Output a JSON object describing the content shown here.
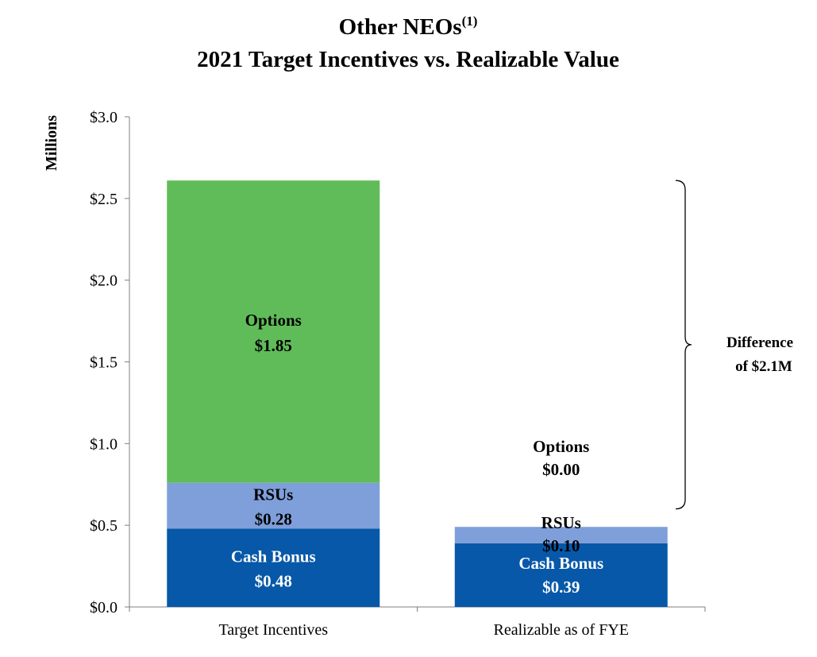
{
  "chart_data": {
    "type": "bar",
    "stacked": true,
    "title_main": "Other NEOs",
    "title_sup": "(1)",
    "subtitle": "2021 Target Incentives vs. Realizable Value",
    "ylabel": "Millions",
    "ylim": [
      0,
      3.0
    ],
    "yticks": [
      "$0.0",
      "$0.5",
      "$1.0",
      "$1.5",
      "$2.0",
      "$2.5",
      "$3.0"
    ],
    "ytick_values": [
      0,
      0.5,
      1.0,
      1.5,
      2.0,
      2.5,
      3.0
    ],
    "categories": [
      "Target Incentives",
      "Realizable as of FYE"
    ],
    "series": [
      {
        "name": "Cash Bonus",
        "color": "#0758a8",
        "label_color": "#ffffff",
        "values": [
          0.48,
          0.39
        ],
        "labels": [
          "$0.48",
          "$0.39"
        ]
      },
      {
        "name": "RSUs",
        "color": "#7f9fdb",
        "label_color": "#000000",
        "values": [
          0.28,
          0.1
        ],
        "labels": [
          "$0.28",
          "$0.10"
        ]
      },
      {
        "name": "Options",
        "color": "#60bc58",
        "label_color": "#000000",
        "values": [
          1.85,
          0.0
        ],
        "labels": [
          "$1.85",
          "$0.00"
        ]
      }
    ],
    "annotation": {
      "line1": "Difference",
      "line2": "of $2.1M",
      "from": 0.6,
      "to": 2.61
    }
  }
}
